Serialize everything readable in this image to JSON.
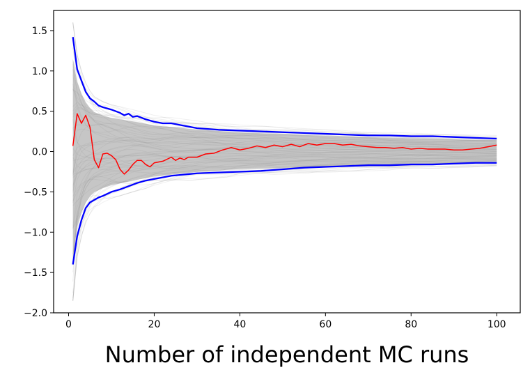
{
  "chart_data": {
    "type": "line",
    "title": "",
    "xlabel": "Number of independent MC runs",
    "ylabel": "",
    "xlim": [
      -3.5,
      105.5
    ],
    "ylim": [
      -2.0,
      1.75
    ],
    "xticks": [
      0,
      20,
      40,
      60,
      80,
      100
    ],
    "xtick_labels": [
      "0",
      "20",
      "40",
      "60",
      "80",
      "100"
    ],
    "yticks": [
      -2.0,
      -1.5,
      -1.0,
      -0.5,
      0.0,
      0.5,
      1.0,
      1.5
    ],
    "ytick_labels": [
      "−2.0",
      "−1.5",
      "−1.0",
      "−0.5",
      "0.0",
      "0.5",
      "1.0",
      "1.5"
    ],
    "grid": false,
    "legend": "none",
    "colors": {
      "band": "#0000ff",
      "mean": "#ff0000",
      "ensemble": "#808080"
    },
    "ensemble_envelope": {
      "x": [
        1,
        2,
        3,
        4,
        5,
        6,
        8,
        10,
        15,
        20,
        30,
        40,
        50,
        60,
        70,
        80,
        90,
        100
      ],
      "upper": [
        1.6,
        1.2,
        1.0,
        0.85,
        0.75,
        0.68,
        0.62,
        0.58,
        0.52,
        0.45,
        0.38,
        0.33,
        0.3,
        0.27,
        0.25,
        0.23,
        0.21,
        0.2
      ],
      "lower": [
        -1.85,
        -1.3,
        -1.05,
        -0.88,
        -0.77,
        -0.7,
        -0.63,
        -0.58,
        -0.5,
        -0.43,
        -0.35,
        -0.3,
        -0.28,
        -0.26,
        -0.24,
        -0.22,
        -0.2,
        -0.19
      ]
    },
    "series": [
      {
        "role": "upper-band",
        "x": [
          1,
          2,
          3,
          4,
          5,
          6,
          7,
          8,
          10,
          12,
          13,
          14,
          15,
          16,
          18,
          20,
          22,
          24,
          26,
          28,
          30,
          35,
          40,
          45,
          50,
          55,
          60,
          65,
          70,
          75,
          80,
          85,
          90,
          95,
          100
        ],
        "values": [
          1.42,
          1.02,
          0.88,
          0.74,
          0.66,
          0.62,
          0.57,
          0.55,
          0.52,
          0.48,
          0.45,
          0.47,
          0.43,
          0.44,
          0.4,
          0.37,
          0.35,
          0.35,
          0.33,
          0.31,
          0.29,
          0.27,
          0.26,
          0.25,
          0.24,
          0.23,
          0.22,
          0.21,
          0.2,
          0.2,
          0.19,
          0.19,
          0.18,
          0.17,
          0.16
        ]
      },
      {
        "role": "mean",
        "x": [
          1,
          2,
          3,
          4,
          5,
          6,
          7,
          8,
          9,
          10,
          11,
          12,
          13,
          14,
          15,
          16,
          17,
          18,
          19,
          20,
          22,
          24,
          25,
          26,
          27,
          28,
          30,
          32,
          34,
          36,
          38,
          40,
          42,
          44,
          46,
          48,
          50,
          52,
          54,
          56,
          58,
          60,
          62,
          64,
          66,
          68,
          70,
          72,
          74,
          76,
          78,
          80,
          82,
          84,
          86,
          88,
          90,
          92,
          94,
          96,
          98,
          100
        ],
        "values": [
          0.07,
          0.47,
          0.35,
          0.45,
          0.3,
          -0.1,
          -0.2,
          -0.03,
          -0.02,
          -0.05,
          -0.1,
          -0.22,
          -0.28,
          -0.23,
          -0.16,
          -0.11,
          -0.11,
          -0.16,
          -0.19,
          -0.14,
          -0.12,
          -0.07,
          -0.11,
          -0.08,
          -0.1,
          -0.07,
          -0.07,
          -0.03,
          -0.02,
          0.02,
          0.05,
          0.02,
          0.04,
          0.07,
          0.05,
          0.08,
          0.06,
          0.09,
          0.06,
          0.1,
          0.08,
          0.1,
          0.1,
          0.08,
          0.09,
          0.07,
          0.06,
          0.05,
          0.05,
          0.04,
          0.05,
          0.03,
          0.04,
          0.03,
          0.03,
          0.03,
          0.02,
          0.02,
          0.03,
          0.04,
          0.06,
          0.08
        ]
      },
      {
        "role": "lower-band",
        "x": [
          1,
          2,
          3,
          4,
          5,
          6,
          7,
          8,
          10,
          12,
          14,
          16,
          18,
          20,
          22,
          24,
          26,
          28,
          30,
          35,
          40,
          45,
          50,
          55,
          60,
          65,
          70,
          75,
          80,
          85,
          90,
          95,
          100
        ],
        "values": [
          -1.4,
          -1.05,
          -0.85,
          -0.7,
          -0.63,
          -0.6,
          -0.57,
          -0.55,
          -0.5,
          -0.47,
          -0.43,
          -0.39,
          -0.36,
          -0.34,
          -0.32,
          -0.3,
          -0.29,
          -0.28,
          -0.27,
          -0.26,
          -0.25,
          -0.24,
          -0.22,
          -0.2,
          -0.19,
          -0.18,
          -0.17,
          -0.17,
          -0.16,
          -0.16,
          -0.15,
          -0.14,
          -0.14
        ]
      }
    ]
  }
}
